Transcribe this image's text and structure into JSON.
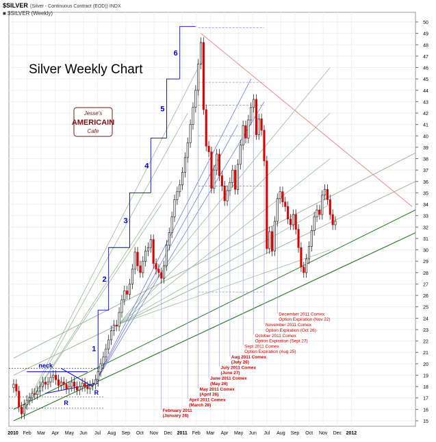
{
  "header": {
    "symbol": "$SILVER",
    "description": "(Silver - Continuous Contract (EOD)) INDX",
    "legend": "■ $SILVER (Weekly)"
  },
  "logo": {
    "line1": "Jesse's",
    "line2": "AMERICAIN",
    "line3": "Cafe"
  },
  "colors": {
    "up": "#ffffff",
    "down": "#dd0000",
    "wave": "#0000cc",
    "event": "#cc0000",
    "green": "#2a7a2a",
    "lightgreen": "#9ab89a",
    "bluefan": "#6a7ad8"
  },
  "chart_data": {
    "type": "candlestick",
    "title": "Silver Weekly Chart",
    "frequency": "weekly",
    "ylim": [
      15,
      50
    ],
    "y_ticks": [
      15,
      16,
      17,
      18,
      19,
      20,
      21,
      22,
      23,
      24,
      25,
      26,
      27,
      28,
      29,
      30,
      31,
      32,
      33,
      34,
      35,
      36,
      37,
      38,
      39,
      40,
      41,
      42,
      43,
      44,
      45,
      46,
      47,
      48,
      49,
      50
    ],
    "x_ticks": [
      "2010",
      "Feb",
      "Mar",
      "Apr",
      "May",
      "Jun",
      "Jul",
      "Aug",
      "Sep",
      "Oct",
      "Nov",
      "Dec",
      "2011",
      "Feb",
      "Mar",
      "Apr",
      "May",
      "Jun",
      "Jul",
      "Aug",
      "Sep",
      "Oct",
      "Nov",
      "Dec",
      "2012"
    ],
    "grid": true,
    "y_axis_side": "right",
    "wave_labels": [
      "1",
      "2",
      "3",
      "4",
      "5",
      "6"
    ],
    "pattern_labels": [
      "neck",
      "R",
      "R"
    ],
    "annotations": [
      [
        "February 2011",
        "(January 26)"
      ],
      [
        "April 2011 Comex",
        "(March 28)"
      ],
      [
        "May 2011 Comex",
        "(April 26)"
      ],
      [
        "June 2011 Comex",
        "(May 26)"
      ],
      [
        "July 2011 Comex",
        "(June 27)"
      ],
      [
        "Aug 2011 Comex",
        "(July 26)"
      ],
      [
        "Sept 2011 Comex",
        "Option Expiration (Aug 25)"
      ],
      [
        "October 2011 Comex",
        "Option Expiration (Sept 27)"
      ],
      [
        "November 2011 Comex",
        "Option Expiration (Oct 26)"
      ],
      [
        "December 2011 Comex",
        "Option Expiration (Nov 22)"
      ]
    ],
    "closes": [
      18.2,
      17.6,
      16.2,
      15.6,
      16.4,
      16.8,
      17.0,
      17.4,
      17.3,
      17.6,
      18.0,
      18.4,
      18.2,
      18.4,
      18.8,
      19.0,
      18.6,
      18.1,
      18.4,
      18.2,
      17.8,
      18.0,
      18.4,
      18.0,
      17.7,
      18.0,
      18.3,
      18.0,
      17.8,
      18.1,
      18.2,
      18.6,
      19.3,
      20.0,
      20.6,
      21.3,
      22.1,
      22.9,
      23.4,
      23.3,
      24.5,
      25.6,
      26.4,
      26.1,
      27.0,
      28.3,
      29.8,
      28.6,
      28.0,
      29.0,
      29.9,
      30.2,
      30.9,
      28.8,
      28.3,
      28.0,
      27.5,
      28.6,
      30.4,
      31.5,
      32.9,
      34.4,
      35.1,
      35.7,
      36.8,
      38.1,
      39.4,
      41.0,
      42.5,
      44.0,
      46.3,
      48.2,
      42.3,
      39.1,
      38.6,
      35.4,
      37.0,
      38.4,
      36.5,
      35.6,
      34.3,
      35.2,
      35.9,
      37.0,
      35.3,
      37.5,
      39.2,
      40.9,
      39.8,
      41.4,
      42.5,
      43.2,
      40.1,
      41.5,
      40.5,
      37.8,
      30.1,
      31.6,
      29.9,
      32.5,
      34.5,
      35.1,
      34.2,
      33.8,
      32.7,
      32.2,
      33.1,
      31.8,
      30.2,
      28.5,
      28.0,
      29.2,
      30.3,
      31.7,
      32.9,
      33.5,
      33.1,
      34.8,
      35.3,
      34.4,
      33.1,
      32.2,
      32.5
    ]
  }
}
